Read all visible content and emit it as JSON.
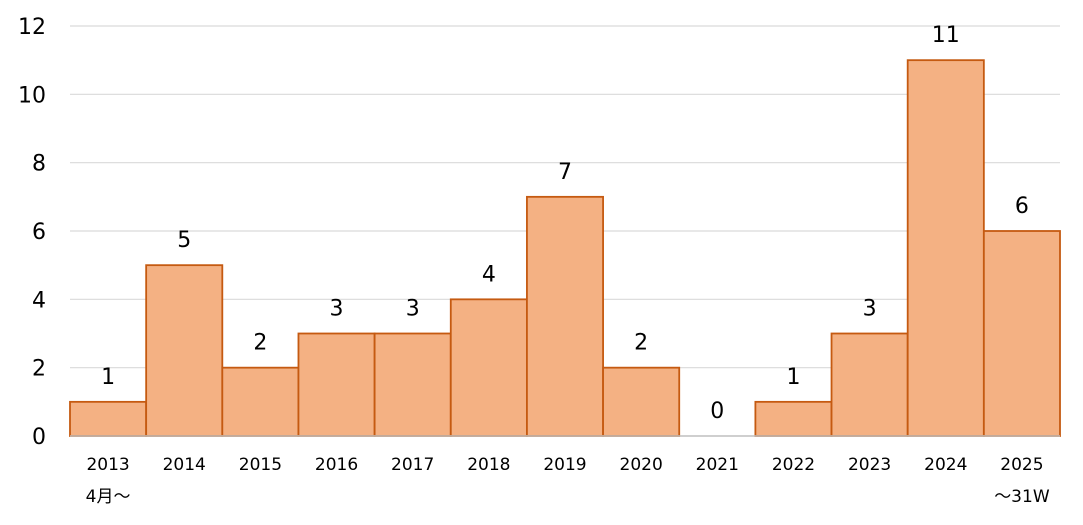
{
  "chart_data": {
    "type": "bar",
    "categories": [
      "2013",
      "2014",
      "2015",
      "2016",
      "2017",
      "2018",
      "2019",
      "2020",
      "2021",
      "2022",
      "2023",
      "2024",
      "2025"
    ],
    "category_sublabels": [
      "4月～",
      "",
      "",
      "",
      "",
      "",
      "",
      "",
      "",
      "",
      "",
      "",
      "～31W"
    ],
    "values": [
      1,
      5,
      2,
      3,
      3,
      4,
      7,
      2,
      0,
      1,
      3,
      11,
      6
    ],
    "ylim": [
      0,
      12
    ],
    "yticks": [
      0,
      2,
      4,
      6,
      8,
      10,
      12
    ],
    "grid": true,
    "bar_color": "#F4B183",
    "bar_edge_color": "#C55A11",
    "data_labels": true
  }
}
